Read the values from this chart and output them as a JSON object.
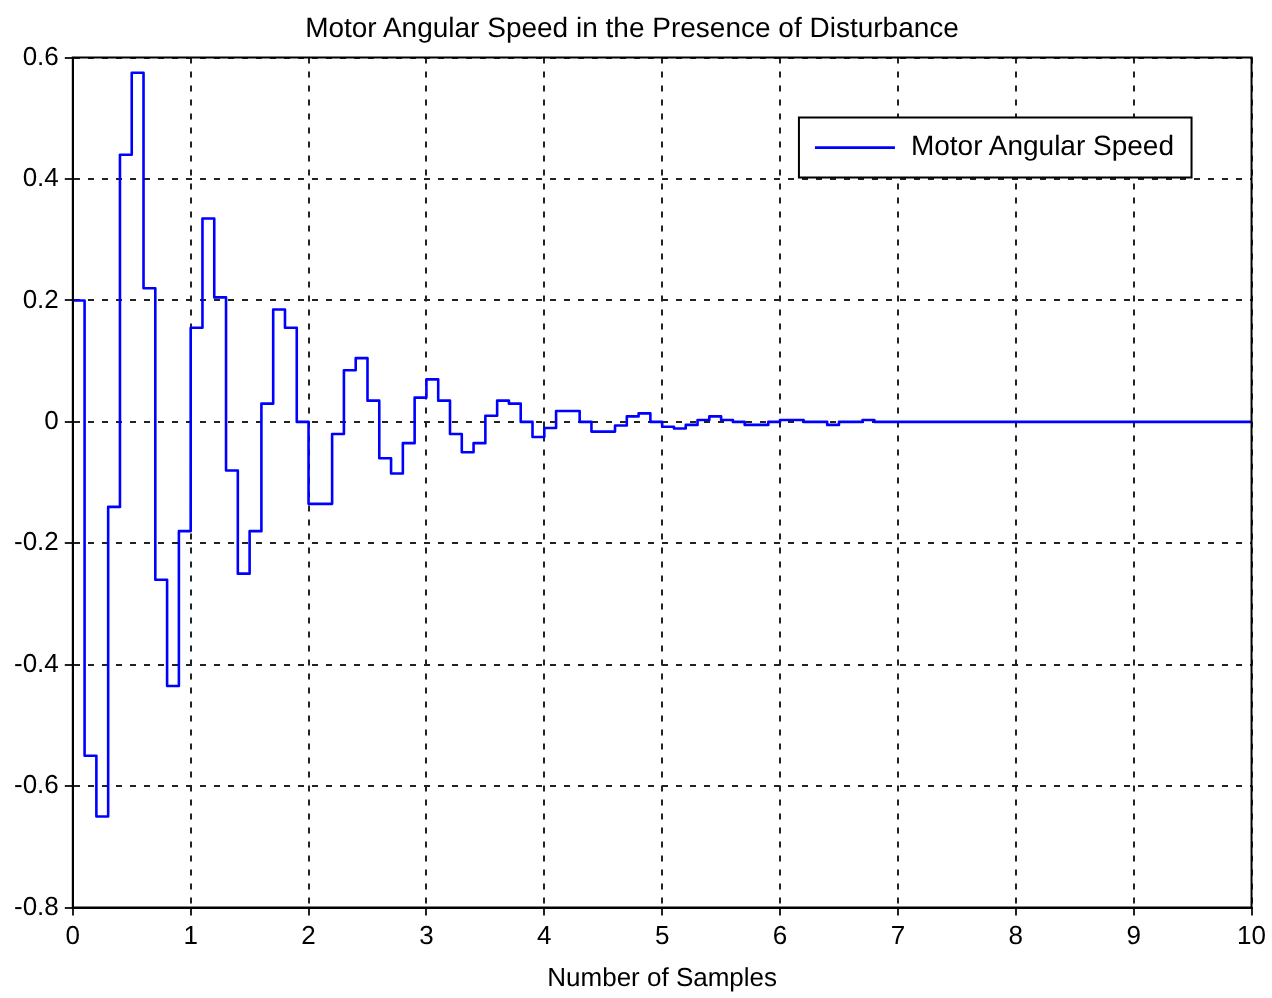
{
  "chart_data": {
    "type": "step",
    "title": "Motor Angular Speed in the Presence of Disturbance",
    "xlabel": "Number of Samples",
    "x": [
      0,
      0.1,
      0.2,
      0.3,
      0.4,
      0.5,
      0.6,
      0.7,
      0.8,
      0.9,
      1.0,
      1.1,
      1.2,
      1.3,
      1.4,
      1.5,
      1.6,
      1.7,
      1.8,
      1.9,
      2.0,
      2.1,
      2.2,
      2.3,
      2.4,
      2.5,
      2.6,
      2.7,
      2.8,
      2.9,
      3.0,
      3.1,
      3.2,
      3.3,
      3.4,
      3.5,
      3.6,
      3.7,
      3.8,
      3.9,
      4.0,
      4.1,
      4.2,
      4.3,
      4.4,
      4.5,
      4.6,
      4.7,
      4.8,
      4.9,
      5.0,
      5.1,
      5.2,
      5.3,
      5.4,
      5.5,
      5.6,
      5.7,
      5.8,
      5.9,
      6.0,
      6.1,
      6.2,
      6.3,
      6.4,
      6.5,
      6.6,
      6.7,
      6.8,
      10
    ],
    "series": [
      {
        "name": "Motor Angular Speed",
        "color": "#0000ff",
        "values": [
          0.2,
          -0.55,
          -0.65,
          -0.14,
          0.44,
          0.575,
          0.22,
          -0.26,
          -0.435,
          -0.18,
          0.155,
          0.335,
          0.205,
          -0.08,
          -0.25,
          -0.18,
          0.03,
          0.185,
          0.155,
          0.0,
          -0.135,
          -0.135,
          -0.02,
          0.085,
          0.105,
          0.035,
          -0.06,
          -0.085,
          -0.035,
          0.04,
          0.07,
          0.035,
          -0.02,
          -0.05,
          -0.035,
          0.01,
          0.035,
          0.03,
          0.0,
          -0.025,
          -0.01,
          0.018,
          0.018,
          0.0,
          -0.016,
          -0.016,
          -0.006,
          0.009,
          0.014,
          0.0,
          -0.008,
          -0.011,
          -0.005,
          0.003,
          0.009,
          0.003,
          0.0,
          -0.005,
          -0.005,
          0.0,
          0.003,
          0.003,
          0.0,
          0.0,
          -0.005,
          0.0,
          0.0,
          0.003,
          0.0,
          0.0
        ]
      }
    ],
    "xlim": [
      0,
      10
    ],
    "xticks": [
      0,
      1,
      2,
      3,
      4,
      5,
      6,
      7,
      8,
      9,
      10
    ],
    "ylim": [
      -0.8,
      0.6
    ],
    "yticks": [
      -0.8,
      -0.6,
      -0.4,
      -0.2,
      0,
      0.2,
      0.4,
      0.6
    ],
    "grid": true,
    "legend": "top right",
    "marker": "none",
    "line_style": "solid"
  }
}
